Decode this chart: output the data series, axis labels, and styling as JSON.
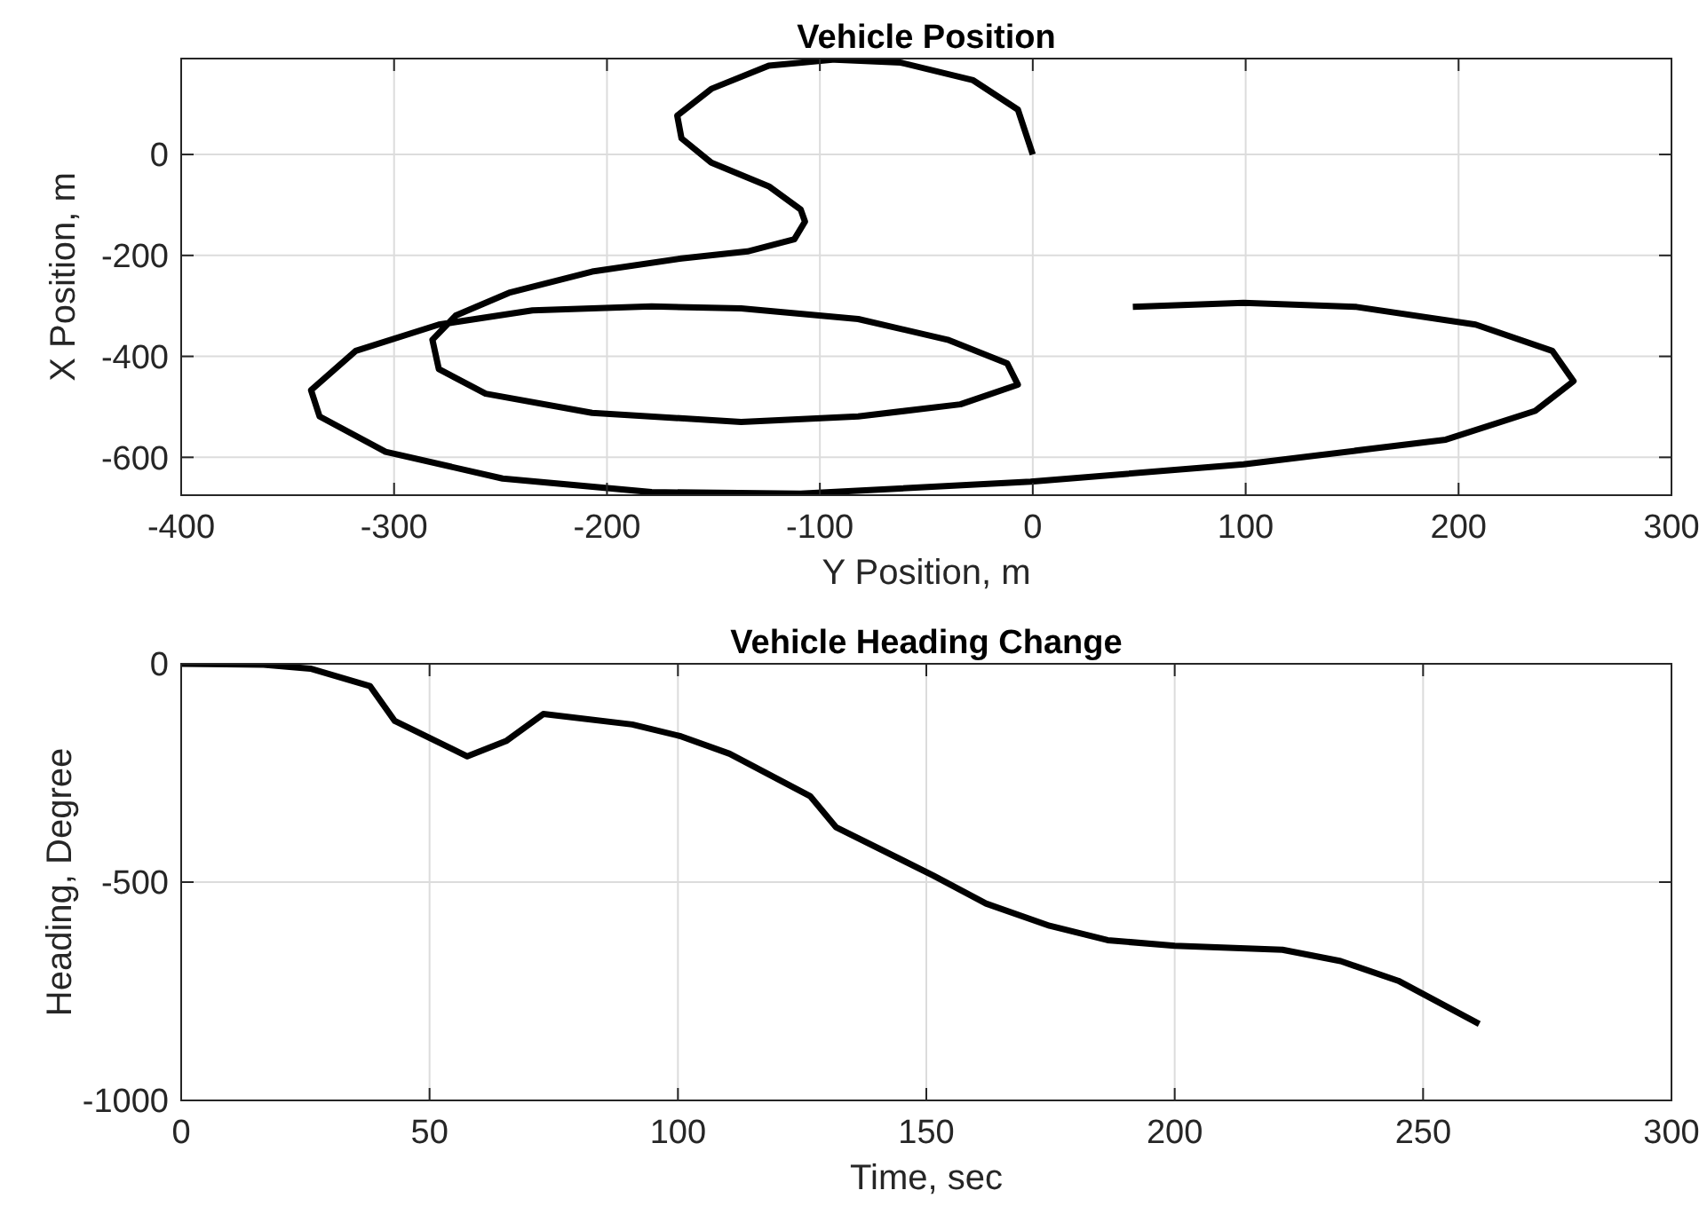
{
  "chart_data": [
    {
      "type": "line",
      "title": "Vehicle Position",
      "xlabel": "Y Position, m",
      "ylabel": "X Position, m",
      "xlim": [
        -400,
        300
      ],
      "ylim": [
        -675,
        190
      ],
      "xticks": [
        -400,
        -300,
        -200,
        -100,
        0,
        100,
        200,
        300
      ],
      "yticks": [
        -600,
        -400,
        -200,
        0
      ],
      "grid": true,
      "line_style": "solid",
      "marker": "none",
      "series": [
        {
          "color": "#000000",
          "x": [
            0,
            -7,
            -28,
            -62,
            -93,
            -124,
            -151,
            -167,
            -165,
            -151,
            -124,
            -109,
            -107,
            -112,
            -134,
            -165,
            -207,
            -246,
            -271,
            -282,
            -279,
            -257,
            -207,
            -137,
            -82,
            -34,
            -7,
            -12,
            -40,
            -82,
            -137,
            -179,
            -235,
            -279,
            -318,
            -339,
            -335,
            -304,
            -249,
            -179,
            -109,
            -1,
            99,
            194,
            236,
            254,
            244,
            208,
            152,
            99,
            47
          ],
          "values": [
            0,
            89,
            147,
            182,
            188,
            176,
            130,
            77,
            32,
            -16,
            -63,
            -109,
            -133,
            -168,
            -192,
            -206,
            -232,
            -274,
            -319,
            -367,
            -425,
            -474,
            -512,
            -530,
            -519,
            -495,
            -456,
            -414,
            -367,
            -326,
            -305,
            -301,
            -309,
            -337,
            -389,
            -467,
            -519,
            -589,
            -642,
            -669,
            -672,
            -648,
            -614,
            -565,
            -508,
            -449,
            -389,
            -337,
            -302,
            -294,
            -302
          ]
        }
      ]
    },
    {
      "type": "line",
      "title": "Vehicle Heading Change",
      "xlabel": "Time, sec",
      "ylabel": "Heading, Degree",
      "xlim": [
        0,
        300
      ],
      "ylim": [
        -1000,
        0
      ],
      "xticks": [
        0,
        50,
        100,
        150,
        200,
        250,
        300
      ],
      "yticks": [
        -1000,
        -500,
        0
      ],
      "grid": true,
      "line_style": "solid",
      "marker": "none",
      "series": [
        {
          "color": "#000000",
          "x": [
            0,
            16.6,
            26,
            38,
            43,
            57.6,
            65.4,
            72.9,
            90.8,
            100.6,
            110.4,
            126.6,
            131.8,
            151.4,
            162,
            174.8,
            186.5,
            200,
            221.7,
            233.4,
            245,
            261.3
          ],
          "values": [
            0,
            -2,
            -11,
            -51,
            -131,
            -212,
            -177,
            -115,
            -139,
            -166,
            -206,
            -303,
            -374,
            -485,
            -549,
            -600,
            -633,
            -646,
            -655,
            -681,
            -726,
            -825
          ]
        }
      ]
    }
  ]
}
